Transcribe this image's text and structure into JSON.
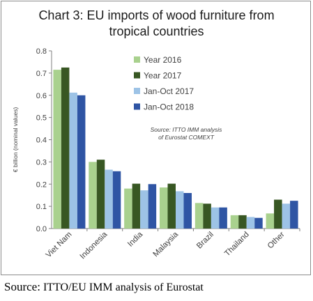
{
  "chart_data": {
    "type": "bar",
    "title_lines": [
      "Chart 3: EU imports of wood furniture from",
      "tropical countries"
    ],
    "ylabel": "€ billion (nominal values)",
    "xlabel": "",
    "ylim": [
      0,
      0.8
    ],
    "yticks": [
      "0.0",
      "0.1",
      "0.2",
      "0.3",
      "0.4",
      "0.5",
      "0.6",
      "0.7",
      "0.8"
    ],
    "grid": false,
    "legend_position": "top-right",
    "categories": [
      "Viet Nam",
      "Indonesia",
      "India",
      "Malaysia",
      "Brazil",
      "Thailand",
      "Other"
    ],
    "series": [
      {
        "name": "Year 2016",
        "color": "#a9d18e",
        "values": [
          0.715,
          0.3,
          0.18,
          0.185,
          0.115,
          0.06,
          0.068
        ]
      },
      {
        "name": "Year 2017",
        "color": "#385723",
        "values": [
          0.725,
          0.31,
          0.202,
          0.202,
          0.112,
          0.06,
          0.13
        ]
      },
      {
        "name": "Jan-Oct 2017",
        "color": "#9dc3e6",
        "values": [
          0.612,
          0.265,
          0.172,
          0.168,
          0.095,
          0.052,
          0.112
        ]
      },
      {
        "name": "Jan-Oct 2018",
        "color": "#2f55a4",
        "values": [
          0.6,
          0.258,
          0.2,
          0.16,
          0.095,
          0.048,
          0.125
        ]
      }
    ],
    "annotation_lines": [
      "Source: ITTO IMM analysis",
      "of Eurostat COMEXT"
    ]
  },
  "footer": {
    "lead": "Source:",
    "rest": " ITTO/EU IMM analysis of Eurostat"
  }
}
